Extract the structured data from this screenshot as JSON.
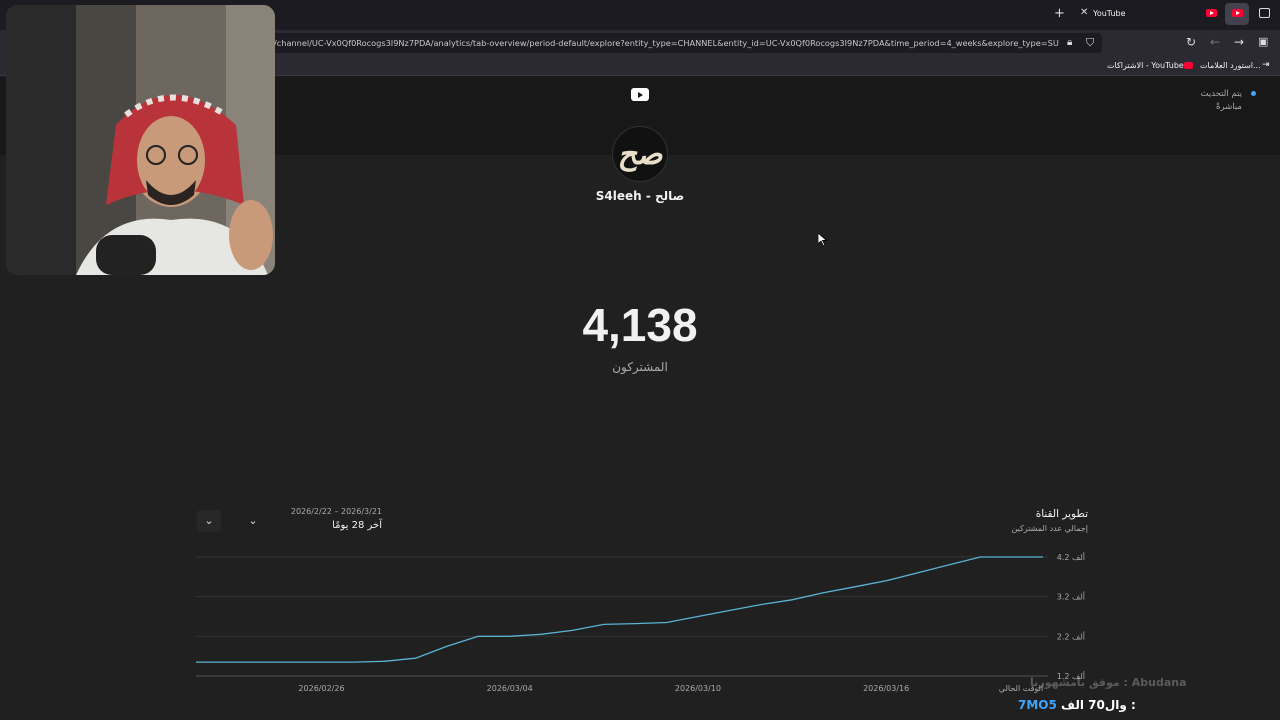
{
  "browser": {
    "tab_title": "YouTube",
    "url": "/channel/UC-Vx0Qf0Rocogs3I9Nz7PDA/analytics/tab-overview/period-default/explore?entity_type=CHANNEL&entity_id=UC-Vx0Qf0Rocogs3I9Nz7PDA&time_period=4_weeks&explore_type=SU",
    "bookmarks": [
      "استورد العلامات...",
      "الاشتراكات - YouTube"
    ]
  },
  "header": {
    "live_line1": "يتم التحديث",
    "live_line2": "مباشرةً"
  },
  "channel": {
    "name": "S4leeh - صالح",
    "subscribers": "4,138",
    "subscribers_label": "المشتركون"
  },
  "chart_panel": {
    "title": "تطوير القناة",
    "subtitle": "إجمالي عدد المشتركين",
    "date_range": "2026/2/22 – 2026/3/21",
    "period_label": "آخر 28 يومًا"
  },
  "chart_data": {
    "type": "line",
    "x": [
      "2026/02/22",
      "2026/02/23",
      "2026/02/24",
      "2026/02/25",
      "2026/02/26",
      "2026/02/27",
      "2026/02/28",
      "2026/03/01",
      "2026/03/02",
      "2026/03/03",
      "2026/03/04",
      "2026/03/05",
      "2026/03/06",
      "2026/03/07",
      "2026/03/08",
      "2026/03/09",
      "2026/03/10",
      "2026/03/11",
      "2026/03/12",
      "2026/03/13",
      "2026/03/14",
      "2026/03/15",
      "2026/03/16",
      "2026/03/17",
      "2026/03/18",
      "2026/03/19",
      "2026/03/20",
      "2026/03/21"
    ],
    "series": [
      {
        "values": [
          1.55,
          1.55,
          1.55,
          1.55,
          1.55,
          1.55,
          1.57,
          1.65,
          1.95,
          2.2,
          2.2,
          2.25,
          2.35,
          2.5,
          2.52,
          2.55,
          2.7,
          2.85,
          3.0,
          3.12,
          3.3,
          3.45,
          3.6,
          3.8,
          4.0,
          4.2,
          4.2,
          4.2
        ]
      }
    ],
    "x_tick_labels": [
      "2026/02/26",
      "2026/03/04",
      "2026/03/10",
      "2026/03/16",
      "الوقت الحالي"
    ],
    "y_tick_labels": [
      "4.2 ألف",
      "3.2 ألف",
      "2.2 ألف",
      "1.2 ألف"
    ],
    "y_ticks": [
      4.2,
      3.2,
      2.2,
      1.2
    ],
    "ylim": [
      1.2,
      4.2
    ],
    "line_color": "#5ab3d6",
    "grid": true
  },
  "overlay": {
    "faint_text": "موفق بامشهورنا : Abudana",
    "line_prefix": "وال70 الف : ",
    "line_handle": "7MO5"
  },
  "colors": {
    "accent": "#3ea6ff",
    "youtube_red": "#ff0033"
  }
}
